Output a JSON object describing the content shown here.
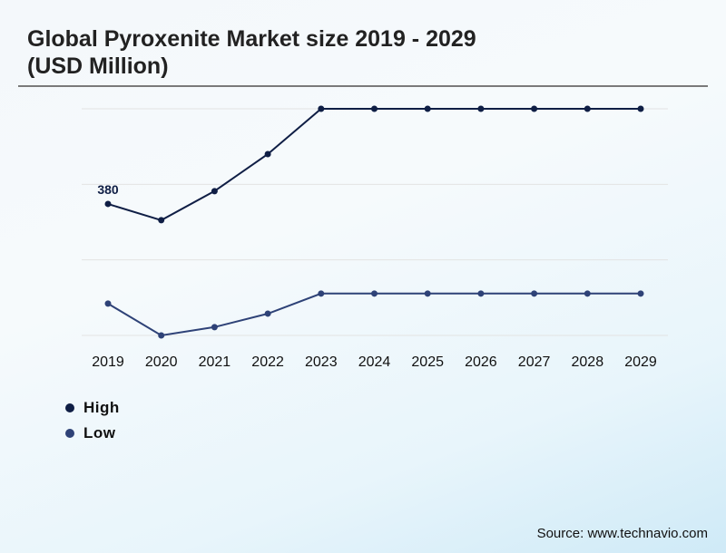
{
  "title_line1": "Global Pyroxenite Market size 2019 - 2029",
  "title_line2": "(USD Million)",
  "source": "Source: www.technavio.com",
  "colors": {
    "high": "#0f1e45",
    "low": "#2e4277",
    "grid": "#e3e3e3"
  },
  "chart_data": {
    "type": "line",
    "title": "Global Pyroxenite Market size 2019 - 2029 (USD Million)",
    "xlabel": "",
    "ylabel": "",
    "categories": [
      "2019",
      "2020",
      "2021",
      "2022",
      "2023",
      "2024",
      "2025",
      "2026",
      "2027",
      "2028",
      "2029"
    ],
    "ylim": [
      0,
      655
    ],
    "grid": true,
    "legend": "bottom-left",
    "series": [
      {
        "name": "High",
        "values": [
          380,
          333,
          417,
          524,
          655,
          655,
          655,
          655,
          655,
          655,
          655
        ]
      },
      {
        "name": "Low",
        "values": [
          92,
          0,
          24,
          63,
          121,
          121,
          121,
          121,
          121,
          121,
          121
        ]
      }
    ],
    "annotations": [
      {
        "series": "High",
        "category": "2019",
        "text": "380"
      }
    ]
  }
}
